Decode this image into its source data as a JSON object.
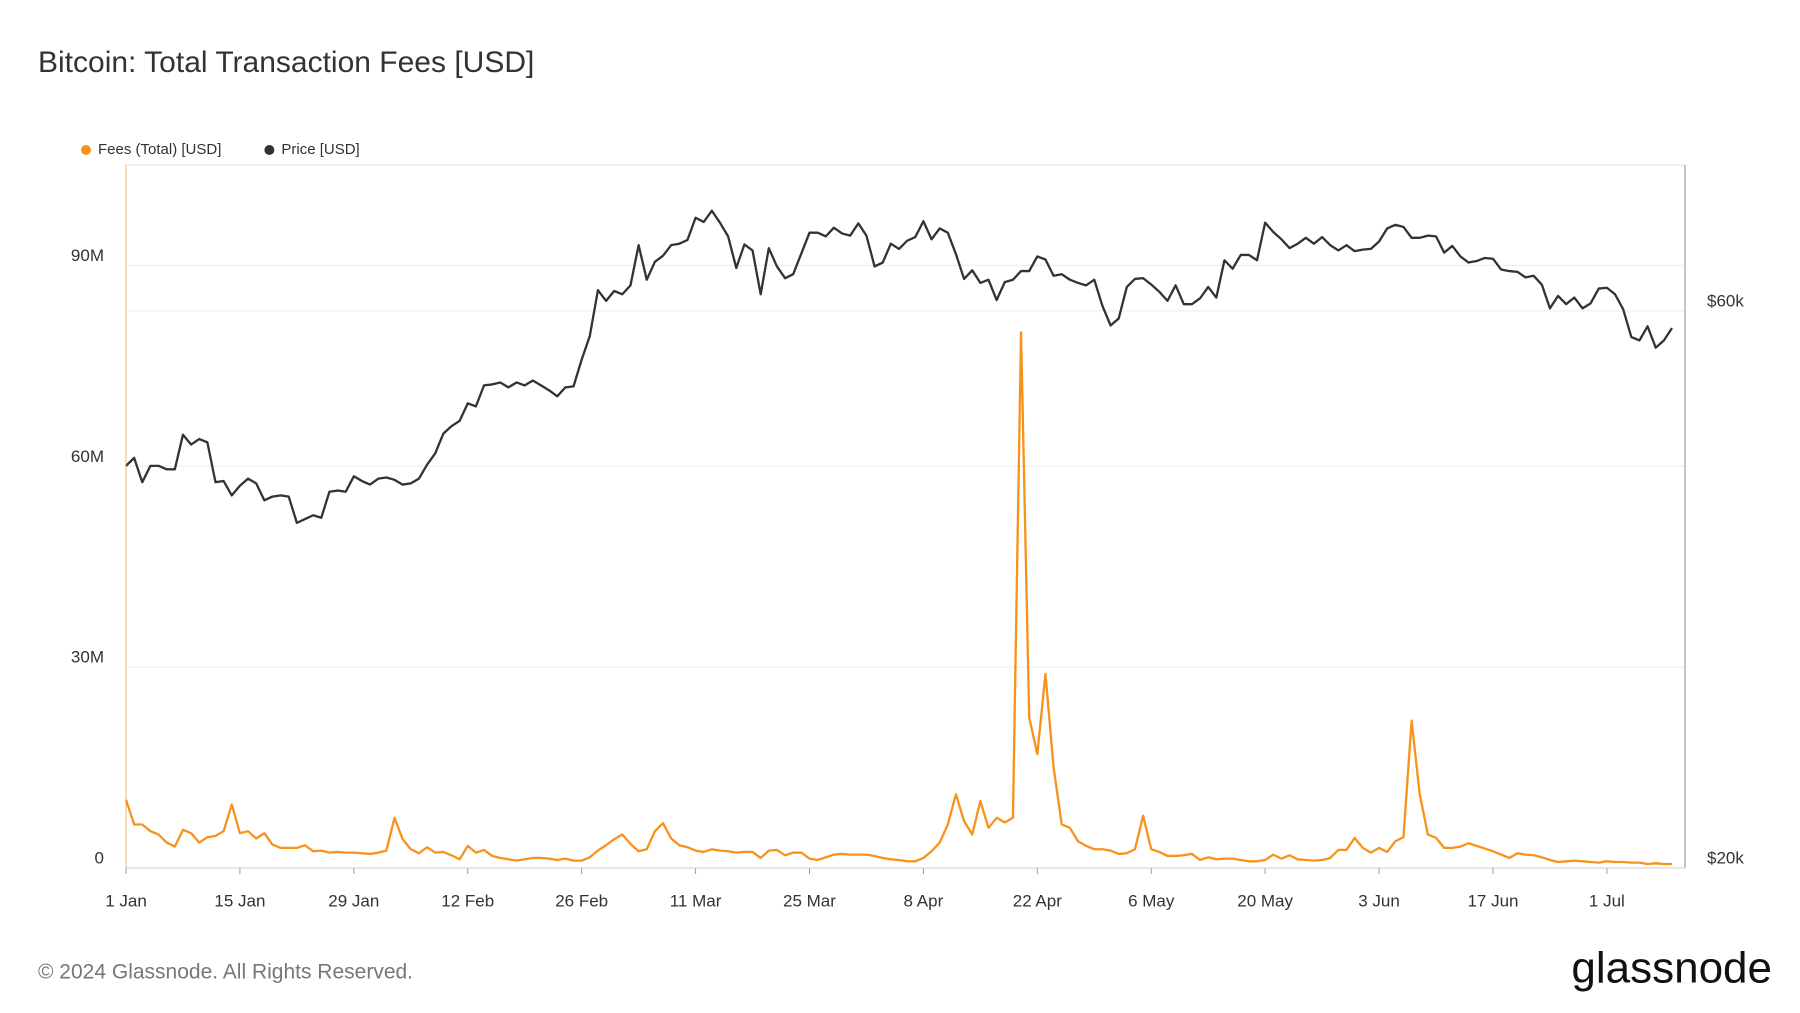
{
  "chart_data": {
    "type": "line",
    "title": "Bitcoin: Total Transaction Fees [USD]",
    "copyright": "© 2024 Glassnode. All Rights Reserved.",
    "brand": "glassnode",
    "categories": [
      "1 Jan",
      null,
      null,
      null,
      null,
      null,
      null,
      null,
      null,
      null,
      null,
      null,
      null,
      null,
      "15 Jan",
      null,
      null,
      null,
      null,
      null,
      null,
      null,
      null,
      null,
      null,
      null,
      null,
      null,
      "29 Jan",
      null,
      null,
      null,
      null,
      null,
      null,
      null,
      null,
      null,
      null,
      null,
      null,
      null,
      "12 Feb",
      null,
      null,
      null,
      null,
      null,
      null,
      null,
      null,
      null,
      null,
      null,
      null,
      null,
      "26 Feb",
      null,
      null,
      null,
      null,
      null,
      null,
      null,
      null,
      null,
      null,
      null,
      null,
      null,
      "11 Mar",
      null,
      null,
      null,
      null,
      null,
      null,
      null,
      null,
      null,
      null,
      null,
      null,
      null,
      "25 Mar",
      null,
      null,
      null,
      null,
      null,
      null,
      null,
      null,
      null,
      null,
      null,
      null,
      null,
      "8 Apr",
      null,
      null,
      null,
      null,
      null,
      null,
      null,
      null,
      null,
      null,
      null,
      null,
      null,
      "22 Apr",
      null,
      null,
      null,
      null,
      null,
      null,
      null,
      null,
      null,
      null,
      null,
      null,
      null,
      "6 May",
      null,
      null,
      null,
      null,
      null,
      null,
      null,
      null,
      null,
      null,
      null,
      null,
      null,
      "20 May",
      null,
      null,
      null,
      null,
      null,
      null,
      null,
      null,
      null,
      null,
      null,
      null,
      null,
      "3 Jun",
      null,
      null,
      null,
      null,
      null,
      null,
      null,
      null,
      null,
      null,
      null,
      null,
      null,
      "17 Jun",
      null,
      null,
      null,
      null,
      null,
      null,
      null,
      null,
      null,
      null,
      null,
      null,
      null,
      "1 Jul",
      null,
      null,
      null,
      null,
      null,
      null,
      null,
      null
    ],
    "series": [
      {
        "name": "Fees (Total) [USD]",
        "color": "#f7931a",
        "axis": "y",
        "values": [
          10200000,
          6500000,
          6500000,
          5500000,
          5000000,
          3800000,
          3200000,
          5700000,
          5200000,
          3800000,
          4600000,
          4800000,
          5500000,
          9500000,
          5200000,
          5500000,
          4400000,
          5200000,
          3500000,
          3000000,
          3000000,
          3000000,
          3400000,
          2500000,
          2600000,
          2300000,
          2400000,
          2300000,
          2300000,
          2200000,
          2100000,
          2300000,
          2600000,
          7500000,
          4300000,
          2800000,
          2200000,
          3100000,
          2300000,
          2400000,
          1900000,
          1300000,
          3300000,
          2300000,
          2700000,
          1800000,
          1500000,
          1300000,
          1100000,
          1300000,
          1500000,
          1500000,
          1400000,
          1200000,
          1400000,
          1100000,
          1100000,
          1600000,
          2600000,
          3400000,
          4300000,
          5000000,
          3600000,
          2500000,
          2800000,
          5500000,
          6700000,
          4400000,
          3400000,
          3100000,
          2600000,
          2400000,
          2800000,
          2600000,
          2500000,
          2300000,
          2400000,
          2400000,
          1500000,
          2600000,
          2700000,
          1900000,
          2300000,
          2300000,
          1400000,
          1200000,
          1600000,
          2000000,
          2100000,
          2000000,
          2000000,
          2000000,
          1800000,
          1500000,
          1300000,
          1200000,
          1000000,
          1000000,
          1500000,
          2500000,
          3800000,
          6500000,
          11000000,
          7000000,
          5000000,
          10000000,
          6000000,
          7500000,
          6800000,
          7500000,
          80000000,
          22500000,
          17000000,
          29000000,
          15000000,
          6500000,
          6000000,
          4000000,
          3300000,
          2800000,
          2800000,
          2600000,
          2100000,
          2200000,
          2800000,
          7800000,
          2800000,
          2400000,
          1800000,
          1800000,
          1900000,
          2100000,
          1200000,
          1600000,
          1300000,
          1400000,
          1400000,
          1200000,
          1000000,
          1000000,
          1200000,
          2000000,
          1400000,
          1900000,
          1300000,
          1200000,
          1100000,
          1200000,
          1500000,
          2700000,
          2700000,
          4500000,
          3000000,
          2300000,
          3000000,
          2400000,
          4000000,
          4600000,
          22000000,
          11000000,
          5000000,
          4500000,
          3000000,
          3000000,
          3200000,
          3700000,
          3300000,
          2900000,
          2500000,
          2000000,
          1500000,
          2200000,
          2000000,
          1900000,
          1600000,
          1200000,
          900000,
          1000000,
          1100000,
          1000000,
          900000,
          800000,
          1000000,
          900000,
          900000,
          800000,
          800000,
          600000,
          700000,
          600000,
          600000
        ]
      },
      {
        "name": "Price [USD]",
        "color": "#333333",
        "axis": "y2",
        "values": [
          44200,
          44900,
          42800,
          44200,
          44200,
          43900,
          43900,
          47000,
          46100,
          46600,
          46300,
          42800,
          42900,
          41700,
          42500,
          43100,
          42700,
          41300,
          41600,
          41700,
          41600,
          39500,
          39800,
          40100,
          39900,
          42000,
          42100,
          42000,
          43300,
          42900,
          42600,
          43100,
          43200,
          43000,
          42600,
          42700,
          43100,
          44300,
          45300,
          47100,
          47800,
          48300,
          50000,
          49700,
          51800,
          51900,
          52100,
          51600,
          52100,
          51800,
          52300,
          51800,
          51300,
          50700,
          51600,
          51700,
          54500,
          57100,
          62500,
          61200,
          62400,
          62000,
          63100,
          68300,
          63800,
          66100,
          66900,
          68300,
          68500,
          69000,
          72100,
          71500,
          73100,
          71400,
          69500,
          65300,
          68400,
          67600,
          62000,
          67900,
          65500,
          64000,
          64500,
          67200,
          70000,
          70000,
          69500,
          70700,
          69900,
          69600,
          71300,
          69600,
          65500,
          66000,
          68500,
          67800,
          68900,
          69400,
          71600,
          69100,
          70600,
          70000,
          67100,
          63900,
          65000,
          63400,
          63800,
          61300,
          63500,
          63800,
          64900,
          64900,
          66800,
          66400,
          64300,
          64500,
          63800,
          63400,
          63100,
          63800,
          60600,
          58300,
          59100,
          62900,
          63900,
          64000,
          63200,
          62300,
          61200,
          63100,
          60800,
          60800,
          61500,
          62900,
          61600,
          66300,
          65200,
          67000,
          67000,
          66300,
          71400,
          70100,
          69100,
          67900,
          68500,
          69300,
          68500,
          69400,
          68300,
          67600,
          68300,
          67500,
          67700,
          67800,
          68800,
          70600,
          71100,
          70800,
          69300,
          69300,
          69600,
          69500,
          67300,
          68200,
          66800,
          66000,
          66200,
          66600,
          66500,
          65100,
          64900,
          64800,
          64100,
          64300,
          63200,
          60300,
          61800,
          60800,
          61600,
          60300,
          60900,
          62700,
          62800,
          62000,
          60200,
          57000,
          56600,
          58200,
          55800,
          56600,
          58000
        ]
      }
    ],
    "ylim": [
      0,
      105000000
    ],
    "yticks": [
      0,
      {
        "value": 30000000,
        "label": "30M"
      },
      {
        "value": 60000000,
        "label": "60M"
      },
      {
        "value": 90000000,
        "label": "90M"
      }
    ],
    "y2lim": [
      20000,
      80000
    ],
    "y2log": true,
    "y2ticks": [
      {
        "value": 20000,
        "label": "$20k"
      },
      {
        "value": 60000,
        "label": "$60k"
      }
    ],
    "grid": true,
    "legend": "top-left"
  }
}
